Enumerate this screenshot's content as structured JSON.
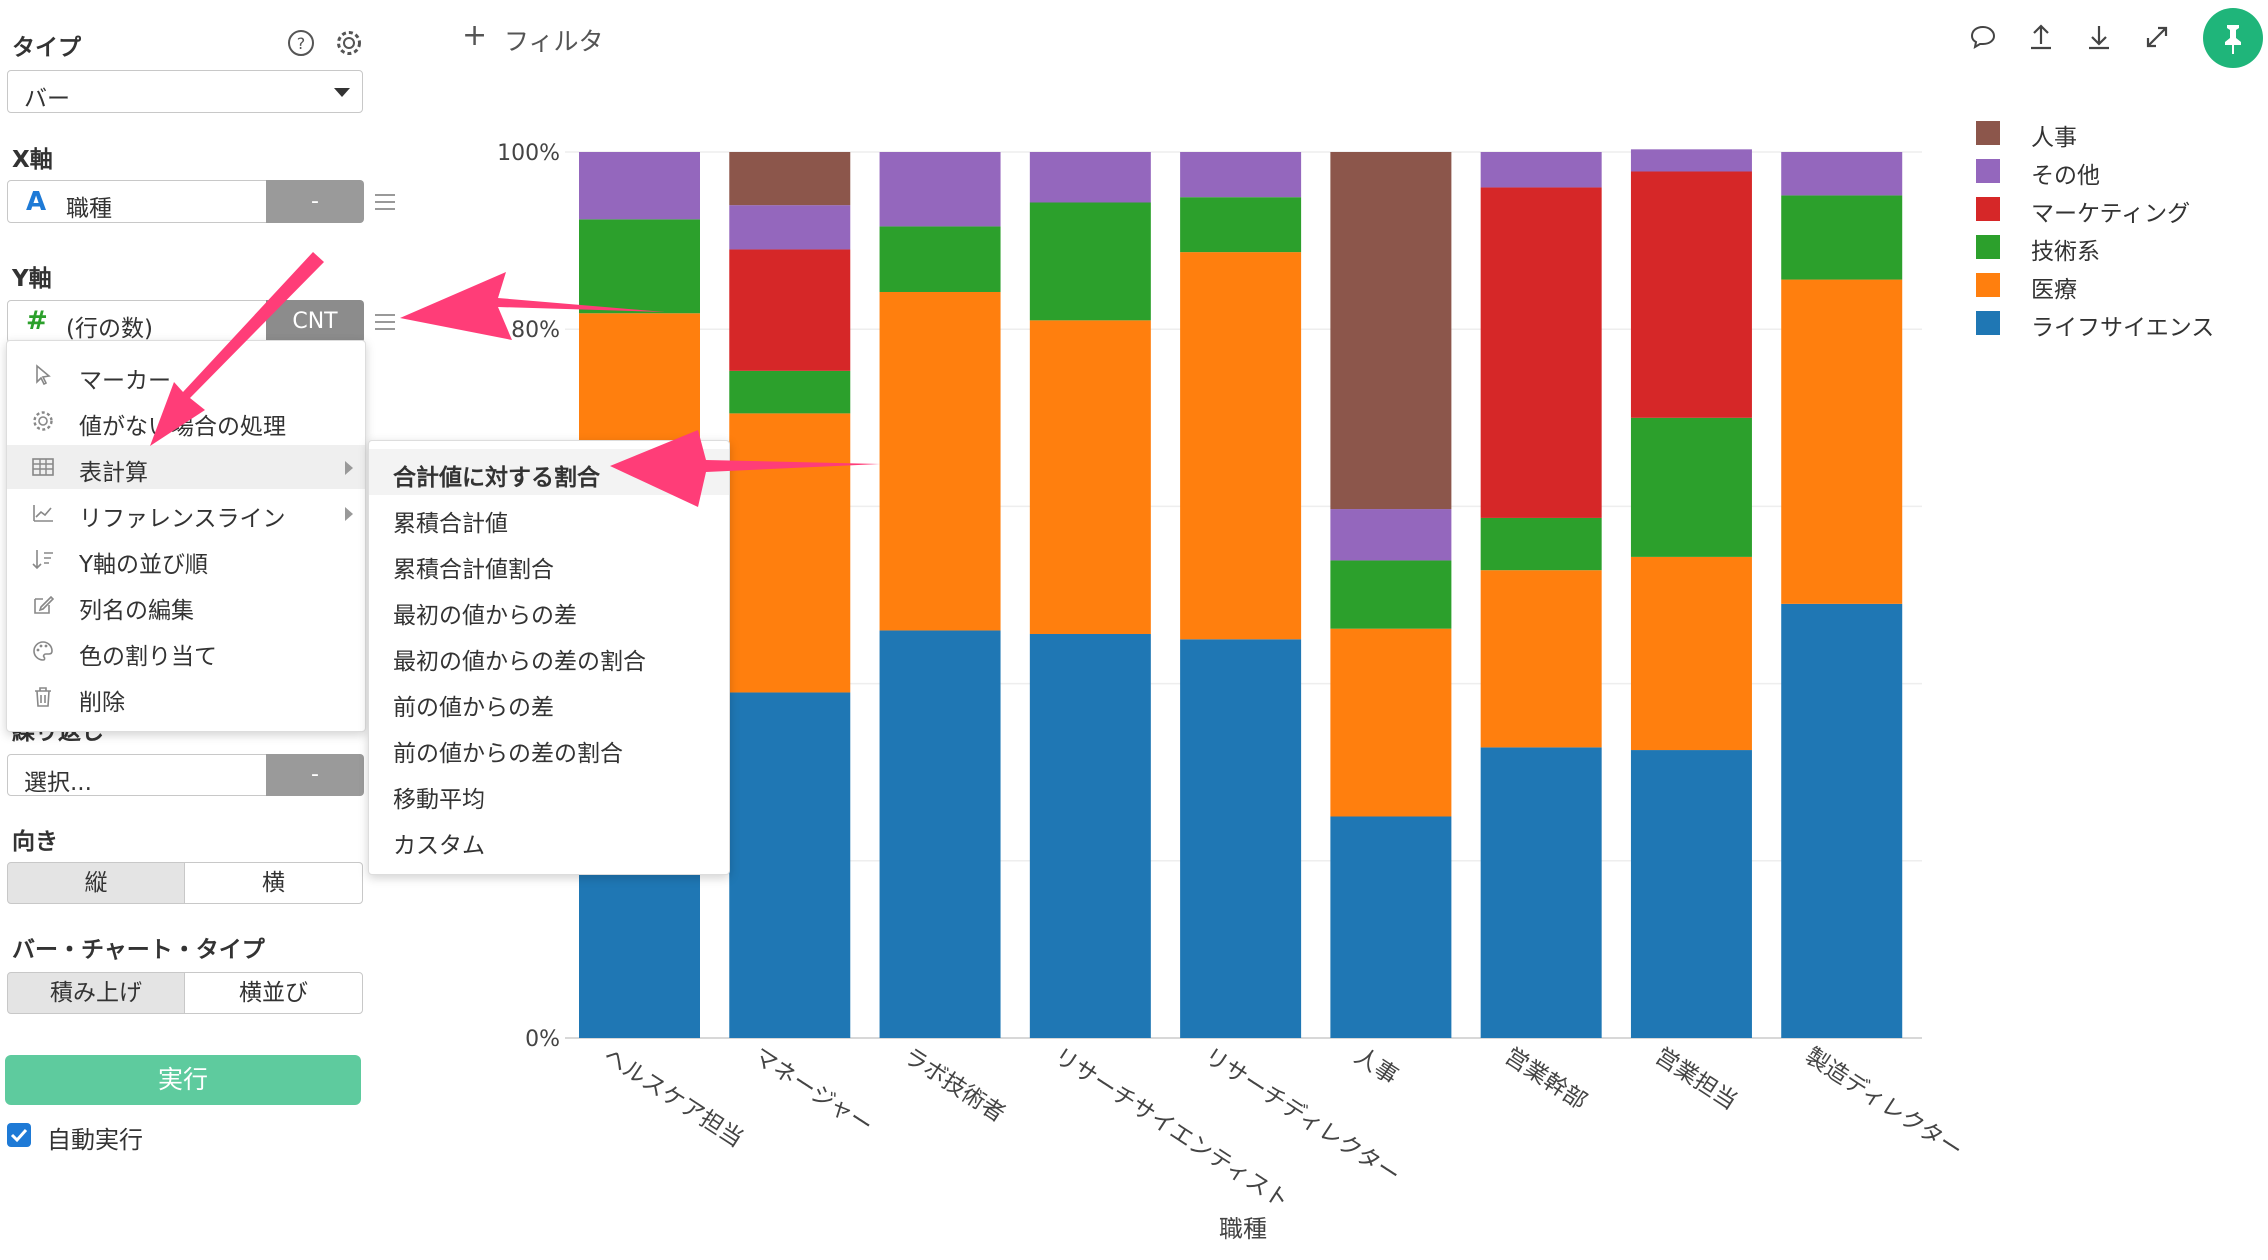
{
  "sidebar": {
    "type_label": "タイプ",
    "type_value": "バー",
    "x_axis_label": "X軸",
    "x_field": "職種",
    "x_field_icon": "A",
    "x_btn": "-",
    "y_axis_label": "Y軸",
    "y_field": "(行の数)",
    "y_field_icon": "#",
    "y_btn": "CNT",
    "repeat_label": "繰り返し",
    "repeat_value": "選択...",
    "repeat_btn": "-",
    "orientation_label": "向き",
    "orientation_options": [
      "縦",
      "横"
    ],
    "bar_type_label": "バー・チャート・タイプ",
    "bar_type_options": [
      "積み上げ",
      "横並び"
    ],
    "run_button": "実行",
    "auto_run_label": "自動実行"
  },
  "context_menu": {
    "items": [
      {
        "label": "マーカー",
        "icon": "cursor-icon"
      },
      {
        "label": "値がない場合の処理",
        "icon": "gear-icon"
      },
      {
        "label": "表計算",
        "icon": "table-icon",
        "has_submenu": true
      },
      {
        "label": "リファレンスライン",
        "icon": "line-chart-icon",
        "has_submenu": true
      },
      {
        "label": "Y軸の並び順",
        "icon": "sort-icon"
      },
      {
        "label": "列名の編集",
        "icon": "edit-icon"
      },
      {
        "label": "色の割り当て",
        "icon": "palette-icon"
      },
      {
        "label": "削除",
        "icon": "trash-icon"
      }
    ]
  },
  "submenu": {
    "items": [
      "合計値に対する割合",
      "累積合計値",
      "累積合計値割合",
      "最初の値からの差",
      "最初の値からの差の割合",
      "前の値からの差",
      "前の値からの差の割合",
      "移動平均",
      "カスタム"
    ]
  },
  "toolbar": {
    "filter_label": "フィルタ"
  },
  "colors": {
    "accent_green": "#1fb57a",
    "run_button": "#5ecb9e",
    "arrow": "#ff3d78"
  },
  "chart_data": {
    "type": "bar",
    "stacked": true,
    "percent": true,
    "xlabel": "職種",
    "ylabel": "",
    "ylim": [
      0,
      100
    ],
    "y_tick_labels": [
      "100%",
      "80%",
      "0%"
    ],
    "categories": [
      "ヘルスケア担当",
      "マネージャー",
      "ラボ技術者",
      "リサーチサイエンティスト",
      "リサーチディレクター",
      "人事",
      "営業幹部",
      "営業担当",
      "製造ディレクター"
    ],
    "series": [
      {
        "name": "ライフサイエンス",
        "color": "#1f77b4",
        "values": [
          39.4,
          39.0,
          46.0,
          45.6,
          45.0,
          25.0,
          32.8,
          32.5,
          49.0
        ]
      },
      {
        "name": "医療",
        "color": "#ff7f0e",
        "values": [
          42.4,
          31.5,
          38.2,
          35.4,
          43.7,
          21.2,
          20.0,
          21.8,
          36.6
        ]
      },
      {
        "name": "技術系",
        "color": "#2ca02c",
        "values": [
          10.6,
          4.8,
          7.4,
          13.3,
          6.2,
          7.7,
          5.9,
          15.7,
          9.5
        ]
      },
      {
        "name": "マーケティング",
        "color": "#d62728",
        "values": [
          0,
          13.7,
          0,
          0,
          0,
          0,
          37.3,
          27.8,
          0
        ]
      },
      {
        "name": "その他",
        "color": "#9467bd",
        "values": [
          7.6,
          5.0,
          8.4,
          5.7,
          5.1,
          5.8,
          4.0,
          2.5,
          4.9
        ]
      },
      {
        "name": "人事",
        "color": "#8c564b",
        "values": [
          0,
          6.0,
          0,
          0,
          0,
          40.3,
          0,
          0,
          0
        ]
      }
    ]
  }
}
